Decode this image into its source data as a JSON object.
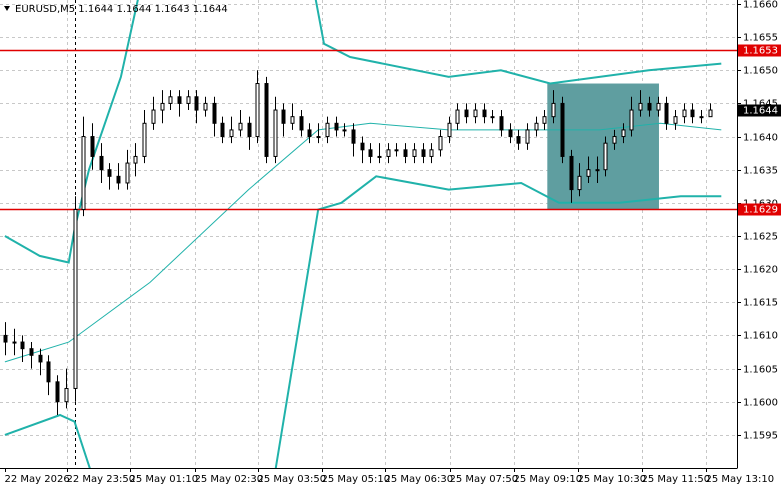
{
  "chart_data": {
    "type": "candlestick",
    "title": "EURUSD,M5  1.1644 1.1644 1.1643 1.1644",
    "x": [
      0,
      3,
      6,
      9,
      12,
      15,
      18,
      21,
      24,
      27,
      30,
      33,
      36,
      39,
      42,
      45,
      48,
      51,
      54,
      57,
      60,
      63,
      66,
      69,
      72,
      75,
      78,
      81,
      84,
      87,
      90,
      93,
      96,
      99,
      102,
      105,
      108,
      111,
      114,
      117,
      120,
      123,
      126,
      129,
      132,
      135,
      138,
      141,
      144,
      147,
      150,
      153,
      156,
      159,
      162,
      165,
      168,
      171,
      174,
      177,
      180,
      183,
      186,
      189,
      192,
      195,
      198,
      201,
      204,
      207,
      210,
      213,
      216,
      219,
      222,
      225,
      228,
      231,
      234,
      237,
      240,
      243
    ],
    "open": [
      1.161,
      1.1609,
      1.1609,
      1.1608,
      1.1607,
      1.1606,
      1.1603,
      1.16,
      1.1602,
      1.1629,
      1.164,
      1.1637,
      1.1635,
      1.1634,
      1.1633,
      1.1636,
      1.1637,
      1.1642,
      1.1644,
      1.1645,
      1.1646,
      1.1645,
      1.1646,
      1.1644,
      1.1645,
      1.1642,
      1.164,
      1.1641,
      1.1642,
      1.164,
      1.1648,
      1.1637,
      1.1644,
      1.1642,
      1.1643,
      1.1641,
      1.164,
      1.164,
      1.1642,
      1.1641,
      1.1641,
      1.1639,
      1.1638,
      1.1637,
      1.1637,
      1.1638,
      1.1638,
      1.1637,
      1.1638,
      1.1637,
      1.1638,
      1.164,
      1.1642,
      1.1644,
      1.1643,
      1.1644,
      1.1643,
      1.1643,
      1.1641,
      1.164,
      1.1639,
      1.1641,
      1.1642,
      1.1643,
      1.1645,
      1.1637,
      1.1632,
      1.1634,
      1.1635,
      1.1635,
      1.1639,
      1.164,
      1.1641,
      1.1644,
      1.1645,
      1.1644,
      1.1645,
      1.1642,
      1.1643,
      1.1644,
      1.1643,
      1.1643
    ],
    "high": [
      1.1612,
      1.1611,
      1.161,
      1.1609,
      1.1608,
      1.1607,
      1.1604,
      1.1605,
      1.1631,
      1.1643,
      1.1642,
      1.1639,
      1.1636,
      1.1636,
      1.1638,
      1.1639,
      1.1644,
      1.1646,
      1.1647,
      1.1647,
      1.1647,
      1.1647,
      1.1647,
      1.1646,
      1.1646,
      1.1643,
      1.1643,
      1.1644,
      1.1643,
      1.165,
      1.1649,
      1.1646,
      1.1645,
      1.1645,
      1.1644,
      1.1642,
      1.1642,
      1.1643,
      1.1643,
      1.1642,
      1.1642,
      1.164,
      1.1639,
      1.1639,
      1.1639,
      1.1639,
      1.1639,
      1.1639,
      1.1639,
      1.1639,
      1.1641,
      1.1643,
      1.1645,
      1.1645,
      1.1645,
      1.1645,
      1.1644,
      1.1644,
      1.1642,
      1.1641,
      1.1642,
      1.1643,
      1.1644,
      1.1647,
      1.1646,
      1.1638,
      1.1636,
      1.1637,
      1.1637,
      1.164,
      1.1641,
      1.1642,
      1.1646,
      1.1647,
      1.1646,
      1.1646,
      1.1646,
      1.1644,
      1.1645,
      1.1645,
      1.1644,
      1.1645
    ],
    "low": [
      1.1607,
      1.1607,
      1.1606,
      1.1605,
      1.1604,
      1.1601,
      1.1598,
      1.1599,
      1.16,
      1.1628,
      1.1635,
      1.1633,
      1.1632,
      1.1632,
      1.1632,
      1.1634,
      1.1636,
      1.1641,
      1.1642,
      1.1644,
      1.1643,
      1.1644,
      1.1642,
      1.1643,
      1.164,
      1.1639,
      1.1639,
      1.164,
      1.1638,
      1.1639,
      1.1636,
      1.1636,
      1.164,
      1.1641,
      1.164,
      1.1639,
      1.1639,
      1.1639,
      1.164,
      1.164,
      1.1637,
      1.1636,
      1.1636,
      1.1636,
      1.1636,
      1.1637,
      1.1636,
      1.1636,
      1.1636,
      1.1636,
      1.1637,
      1.1639,
      1.1641,
      1.1642,
      1.1642,
      1.1642,
      1.1642,
      1.164,
      1.1639,
      1.1638,
      1.1638,
      1.164,
      1.1641,
      1.1642,
      1.1636,
      1.163,
      1.1631,
      1.1633,
      1.1633,
      1.1634,
      1.1638,
      1.1639,
      1.164,
      1.1643,
      1.1643,
      1.1643,
      1.1641,
      1.1641,
      1.1642,
      1.1642,
      1.1642,
      1.1643
    ],
    "close": [
      1.1609,
      1.1609,
      1.1608,
      1.1607,
      1.1606,
      1.1603,
      1.16,
      1.1602,
      1.1629,
      1.164,
      1.1637,
      1.1635,
      1.1634,
      1.1633,
      1.1636,
      1.1637,
      1.1642,
      1.1644,
      1.1645,
      1.1646,
      1.1645,
      1.1646,
      1.1644,
      1.1645,
      1.1642,
      1.164,
      1.1641,
      1.1642,
      1.164,
      1.1648,
      1.1637,
      1.1644,
      1.1642,
      1.1643,
      1.1641,
      1.164,
      1.164,
      1.1642,
      1.1641,
      1.1641,
      1.1639,
      1.1638,
      1.1637,
      1.1637,
      1.1638,
      1.1638,
      1.1637,
      1.1638,
      1.1637,
      1.1638,
      1.164,
      1.1642,
      1.1644,
      1.1643,
      1.1644,
      1.1643,
      1.1643,
      1.1641,
      1.164,
      1.1639,
      1.1641,
      1.1642,
      1.1643,
      1.1645,
      1.1637,
      1.1632,
      1.1634,
      1.1635,
      1.1635,
      1.1639,
      1.164,
      1.1641,
      1.1644,
      1.1645,
      1.1644,
      1.1645,
      1.1642,
      1.1643,
      1.1644,
      1.1643,
      1.1643,
      1.1644
    ],
    "color": "#000000",
    "bands": [
      {
        "color": "#20b2aa",
        "x": [
          0,
          12,
          22,
          24,
          29,
          40,
          46,
          78,
          107,
          110,
          119,
          153,
          171,
          188,
          205,
          222,
          247
        ],
        "values": [
          1.1625,
          1.1622,
          1.1621,
          1.1626,
          1.1635,
          1.1649,
          1.1661,
          null,
          1.1661,
          1.1654,
          1.1652,
          1.1649,
          1.165,
          1.1648,
          1.1649,
          1.165,
          1.1651
        ]
      },
      {
        "color": "#20b2aa",
        "x": [
          0,
          22,
          50,
          84,
          108,
          126,
          153,
          171,
          188,
          205,
          226,
          247
        ],
        "values": [
          1.1606,
          1.1609,
          1.1618,
          1.1632,
          1.1641,
          1.1642,
          1.1641,
          1.1641,
          1.1641,
          1.1641,
          1.1642,
          1.1641
        ]
      },
      {
        "color": "#20b2aa",
        "x": [
          0,
          19,
          24,
          30,
          60,
          93,
          108,
          116,
          128,
          153,
          178,
          191,
          212,
          233,
          247
        ],
        "values": [
          1.1595,
          1.1598,
          1.1597,
          1.1589,
          null,
          1.1589,
          1.1629,
          1.163,
          1.1634,
          1.1632,
          1.1633,
          1.163,
          1.163,
          1.1631,
          1.1631
        ]
      }
    ],
    "hlines": [
      1.1653,
      1.1629
    ],
    "hline_color": "#e00000",
    "last_price": 1.1644,
    "vline": 24,
    "rectangle": {
      "x": [
        187,
        225.5
      ],
      "y": [
        1.1629,
        1.1648
      ],
      "color": "#5f9ea0"
    },
    "xlim": [
      -1.7,
      252.4
    ],
    "ylim": [
      1.159,
      1.16606
    ],
    "yticks": [
      1.1595,
      {
        "value": 1.16,
        "label": "1.1600"
      },
      1.1605,
      {
        "value": 1.161,
        "label": "1.1610"
      },
      1.1615,
      {
        "value": 1.162,
        "label": "1.1620"
      },
      1.1625,
      {
        "value": 1.163,
        "label": "1.1630"
      },
      1.1635,
      {
        "value": 1.164,
        "label": "1.1640"
      },
      1.1645,
      {
        "value": 1.165,
        "label": "1.1650"
      },
      1.1655,
      {
        "value": 1.166,
        "label": "1.1660"
      }
    ],
    "xticks": [
      {
        "value": 0,
        "label": "22 May 2026"
      },
      {
        "value": 21.4,
        "label": "22 May 23:50"
      },
      {
        "value": 43.1,
        "label": "25 May 01:10"
      },
      {
        "value": 65.5,
        "label": "25 May 02:30"
      },
      {
        "value": 87.2,
        "label": "25 May 03:50"
      },
      {
        "value": 109.3,
        "label": "25 May 05:10"
      },
      {
        "value": 131.0,
        "label": "25 May 06:30"
      },
      {
        "value": 153.4,
        "label": "25 May 07:50"
      },
      {
        "value": 175.5,
        "label": "25 May 09:10"
      },
      {
        "value": 197.6,
        "label": "25 May 10:30"
      },
      {
        "value": 219.7,
        "label": "25 May 11:50"
      },
      {
        "value": 241.7,
        "label": "25 May 13:10"
      }
    ],
    "grid": true
  }
}
